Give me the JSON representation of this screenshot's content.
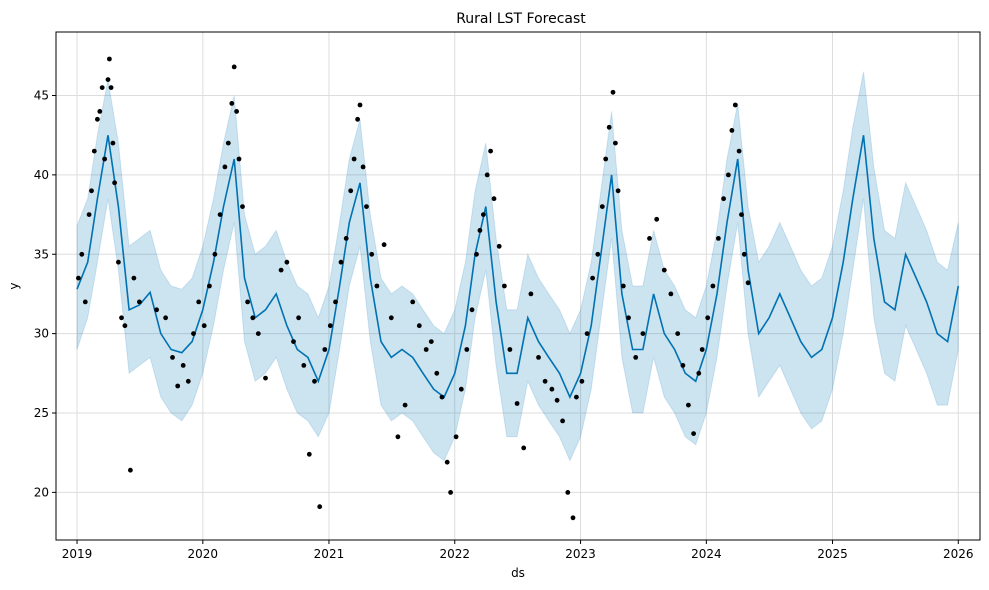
{
  "chart_data": {
    "type": "line",
    "title": "Rural LST Forecast",
    "xlabel": "ds",
    "ylabel": "y",
    "x_range": [
      "2018-11-01",
      "2026-03-05"
    ],
    "y_range": [
      17,
      49
    ],
    "x_ticks": [
      "2019",
      "2020",
      "2021",
      "2022",
      "2023",
      "2024",
      "2025",
      "2026"
    ],
    "y_ticks": [
      20,
      25,
      30,
      35,
      40,
      45
    ],
    "grid": true,
    "legend": "none",
    "colors": {
      "forecast_line": "#0072B2",
      "uncertainty_band": "#0072B2",
      "observations": "#000000"
    },
    "forecast": {
      "x": [
        "2019-01-01",
        "2019-02-01",
        "2019-03-01",
        "2019-04-01",
        "2019-05-01",
        "2019-06-01",
        "2019-07-01",
        "2019-08-01",
        "2019-09-01",
        "2019-10-01",
        "2019-11-01",
        "2019-12-01",
        "2020-01-01",
        "2020-02-01",
        "2020-03-01",
        "2020-04-01",
        "2020-05-01",
        "2020-06-01",
        "2020-07-01",
        "2020-08-01",
        "2020-09-01",
        "2020-10-01",
        "2020-11-01",
        "2020-12-01",
        "2021-01-01",
        "2021-02-01",
        "2021-03-01",
        "2021-04-01",
        "2021-05-01",
        "2021-06-01",
        "2021-07-01",
        "2021-08-01",
        "2021-09-01",
        "2021-10-01",
        "2021-11-01",
        "2021-12-01",
        "2022-01-01",
        "2022-02-01",
        "2022-03-01",
        "2022-04-01",
        "2022-05-01",
        "2022-06-01",
        "2022-07-01",
        "2022-08-01",
        "2022-09-01",
        "2022-10-01",
        "2022-11-01",
        "2022-12-01",
        "2023-01-01",
        "2023-02-01",
        "2023-03-01",
        "2023-04-01",
        "2023-05-01",
        "2023-06-01",
        "2023-07-01",
        "2023-08-01",
        "2023-09-01",
        "2023-10-01",
        "2023-11-01",
        "2023-12-01",
        "2024-01-01",
        "2024-02-01",
        "2024-03-01",
        "2024-04-01",
        "2024-05-01",
        "2024-06-01",
        "2024-07-01",
        "2024-08-01",
        "2024-09-01",
        "2024-10-01",
        "2024-11-01",
        "2024-12-01",
        "2025-01-01",
        "2025-02-01",
        "2025-03-01",
        "2025-04-01",
        "2025-05-01",
        "2025-06-01",
        "2025-07-01",
        "2025-08-01",
        "2025-09-01",
        "2025-10-01",
        "2025-11-01",
        "2025-12-01",
        "2026-01-01"
      ],
      "yhat": [
        32.8,
        34.5,
        38.5,
        42.5,
        38.0,
        31.5,
        31.8,
        32.6,
        30.0,
        29.0,
        28.8,
        29.5,
        31.5,
        34.5,
        38.0,
        41.0,
        33.5,
        31.0,
        31.5,
        32.5,
        30.5,
        29.0,
        28.5,
        27.0,
        29.0,
        33.0,
        37.0,
        39.5,
        33.5,
        29.5,
        28.5,
        29.0,
        28.5,
        27.5,
        26.5,
        26.0,
        27.5,
        30.5,
        35.0,
        38.0,
        32.0,
        27.5,
        27.5,
        31.0,
        29.5,
        28.5,
        27.5,
        26.0,
        27.5,
        30.5,
        35.0,
        40.0,
        32.5,
        29.0,
        29.0,
        32.5,
        30.0,
        29.0,
        27.5,
        27.0,
        29.0,
        32.5,
        37.0,
        41.0,
        34.0,
        30.0,
        31.0,
        32.5,
        31.0,
        29.5,
        28.5,
        29.0,
        31.0,
        34.5,
        38.5,
        42.5,
        36.0,
        32.0,
        31.5,
        35.0,
        33.5,
        32.0,
        30.0,
        29.5,
        33.0
      ],
      "yhat_lower": [
        29.0,
        31.0,
        34.5,
        38.5,
        34.0,
        27.5,
        28.0,
        28.5,
        26.0,
        25.0,
        24.5,
        25.5,
        27.5,
        30.5,
        34.0,
        37.0,
        29.5,
        27.0,
        27.5,
        28.5,
        26.5,
        25.0,
        24.5,
        23.5,
        25.0,
        29.0,
        33.0,
        35.5,
        29.5,
        25.5,
        24.5,
        25.0,
        24.5,
        23.5,
        22.5,
        22.0,
        23.5,
        26.5,
        31.0,
        34.0,
        28.0,
        23.5,
        23.5,
        27.0,
        25.5,
        24.5,
        23.5,
        22.0,
        23.5,
        26.5,
        31.0,
        36.0,
        28.5,
        25.0,
        25.0,
        28.5,
        26.0,
        25.0,
        23.5,
        23.0,
        25.0,
        28.5,
        33.0,
        37.0,
        30.0,
        26.0,
        27.0,
        28.0,
        26.5,
        25.0,
        24.0,
        24.5,
        26.5,
        30.0,
        34.0,
        38.5,
        31.0,
        27.5,
        27.0,
        30.5,
        29.0,
        27.5,
        25.5,
        25.5,
        29.0
      ],
      "yhat_upper": [
        36.8,
        38.5,
        42.5,
        46.0,
        42.0,
        35.5,
        36.0,
        36.5,
        34.0,
        33.0,
        32.8,
        33.5,
        35.5,
        38.5,
        42.0,
        45.0,
        37.5,
        35.0,
        35.5,
        36.5,
        34.5,
        33.0,
        32.5,
        31.0,
        33.0,
        37.0,
        41.0,
        43.5,
        37.5,
        33.5,
        32.5,
        33.0,
        32.5,
        31.5,
        30.5,
        30.0,
        31.5,
        34.5,
        39.0,
        42.0,
        36.0,
        31.5,
        31.5,
        35.0,
        33.5,
        32.5,
        31.5,
        30.0,
        31.5,
        34.5,
        39.0,
        44.0,
        36.5,
        33.0,
        33.0,
        36.5,
        34.0,
        33.0,
        31.5,
        31.0,
        33.0,
        36.5,
        41.0,
        44.5,
        38.0,
        34.5,
        35.5,
        37.0,
        35.5,
        34.0,
        33.0,
        33.5,
        35.5,
        39.0,
        43.0,
        46.5,
        40.5,
        36.5,
        36.0,
        39.5,
        38.0,
        36.5,
        34.5,
        34.0,
        37.0
      ]
    },
    "observations": {
      "x": [
        "2019-01-05",
        "2019-01-15",
        "2019-01-25",
        "2019-02-05",
        "2019-02-12",
        "2019-02-20",
        "2019-03-01",
        "2019-03-08",
        "2019-03-15",
        "2019-03-22",
        "2019-04-01",
        "2019-04-05",
        "2019-04-10",
        "2019-04-15",
        "2019-04-20",
        "2019-05-01",
        "2019-05-10",
        "2019-05-20",
        "2019-06-05",
        "2019-06-15",
        "2019-07-01",
        "2019-08-20",
        "2019-09-15",
        "2019-10-05",
        "2019-10-20",
        "2019-11-05",
        "2019-11-20",
        "2019-12-05",
        "2019-12-20",
        "2020-01-05",
        "2020-01-20",
        "2020-02-05",
        "2020-02-20",
        "2020-03-05",
        "2020-03-15",
        "2020-03-25",
        "2020-04-01",
        "2020-04-08",
        "2020-04-15",
        "2020-04-25",
        "2020-05-10",
        "2020-05-25",
        "2020-06-10",
        "2020-07-01",
        "2020-08-15",
        "2020-09-01",
        "2020-09-20",
        "2020-10-05",
        "2020-10-20",
        "2020-11-05",
        "2020-11-20",
        "2020-12-05",
        "2020-12-20",
        "2021-01-05",
        "2021-01-20",
        "2021-02-05",
        "2021-02-20",
        "2021-03-05",
        "2021-03-15",
        "2021-03-25",
        "2021-04-01",
        "2021-04-10",
        "2021-04-20",
        "2021-05-05",
        "2021-05-20",
        "2021-06-10",
        "2021-07-01",
        "2021-07-20",
        "2021-08-10",
        "2021-09-01",
        "2021-09-20",
        "2021-10-10",
        "2021-10-25",
        "2021-11-10",
        "2021-11-25",
        "2021-12-10",
        "2021-12-20",
        "2022-01-05",
        "2022-01-20",
        "2022-02-05",
        "2022-02-20",
        "2022-03-05",
        "2022-03-15",
        "2022-03-25",
        "2022-04-05",
        "2022-04-15",
        "2022-04-25",
        "2022-05-10",
        "2022-05-25",
        "2022-06-10",
        "2022-07-01",
        "2022-07-20",
        "2022-08-10",
        "2022-09-01",
        "2022-09-20",
        "2022-10-10",
        "2022-10-25",
        "2022-11-10",
        "2022-11-25",
        "2022-12-10",
        "2022-12-20",
        "2023-01-05",
        "2023-01-20",
        "2023-02-05",
        "2023-02-20",
        "2023-03-05",
        "2023-03-15",
        "2023-03-25",
        "2023-04-05",
        "2023-04-12",
        "2023-04-20",
        "2023-05-05",
        "2023-05-20",
        "2023-06-10",
        "2023-07-01",
        "2023-07-20",
        "2023-08-10",
        "2023-09-01",
        "2023-09-20",
        "2023-10-10",
        "2023-10-25",
        "2023-11-10",
        "2023-11-25",
        "2023-12-10",
        "2023-12-20",
        "2024-01-05",
        "2024-01-20",
        "2024-02-05",
        "2024-02-20",
        "2024-03-05",
        "2024-03-15",
        "2024-03-25",
        "2024-04-05",
        "2024-04-12",
        "2024-04-20",
        "2024-05-01"
      ],
      "y": [
        33.5,
        35.0,
        32.0,
        37.5,
        39.0,
        41.5,
        43.5,
        44.0,
        45.5,
        41.0,
        46.0,
        47.3,
        45.5,
        42.0,
        39.5,
        34.5,
        31.0,
        30.5,
        21.4,
        33.5,
        32.0,
        31.5,
        31.0,
        28.5,
        26.7,
        28.0,
        27.0,
        30.0,
        32.0,
        30.5,
        33.0,
        35.0,
        37.5,
        40.5,
        42.0,
        44.5,
        46.8,
        44.0,
        41.0,
        38.0,
        32.0,
        31.0,
        30.0,
        27.2,
        34.0,
        34.5,
        29.5,
        31.0,
        28.0,
        22.4,
        27.0,
        19.1,
        29.0,
        30.5,
        32.0,
        34.5,
        36.0,
        39.0,
        41.0,
        43.5,
        44.4,
        40.5,
        38.0,
        35.0,
        33.0,
        35.6,
        31.0,
        23.5,
        25.5,
        32.0,
        30.5,
        29.0,
        29.5,
        27.5,
        26.0,
        21.9,
        20.0,
        23.5,
        26.5,
        29.0,
        31.5,
        35.0,
        36.5,
        37.5,
        40.0,
        41.5,
        38.5,
        35.5,
        33.0,
        29.0,
        25.6,
        22.8,
        32.5,
        28.5,
        27.0,
        26.5,
        25.8,
        24.5,
        20.0,
        18.4,
        26.0,
        27.0,
        30.0,
        33.5,
        35.0,
        38.0,
        41.0,
        43.0,
        45.2,
        42.0,
        39.0,
        33.0,
        31.0,
        28.5,
        30.0,
        36.0,
        37.2,
        34.0,
        32.5,
        30.0,
        28.0,
        25.5,
        23.7,
        27.5,
        29.0,
        31.0,
        33.0,
        36.0,
        38.5,
        40.0,
        42.8,
        44.4,
        41.5,
        37.5,
        35.0,
        33.2
      ]
    }
  }
}
